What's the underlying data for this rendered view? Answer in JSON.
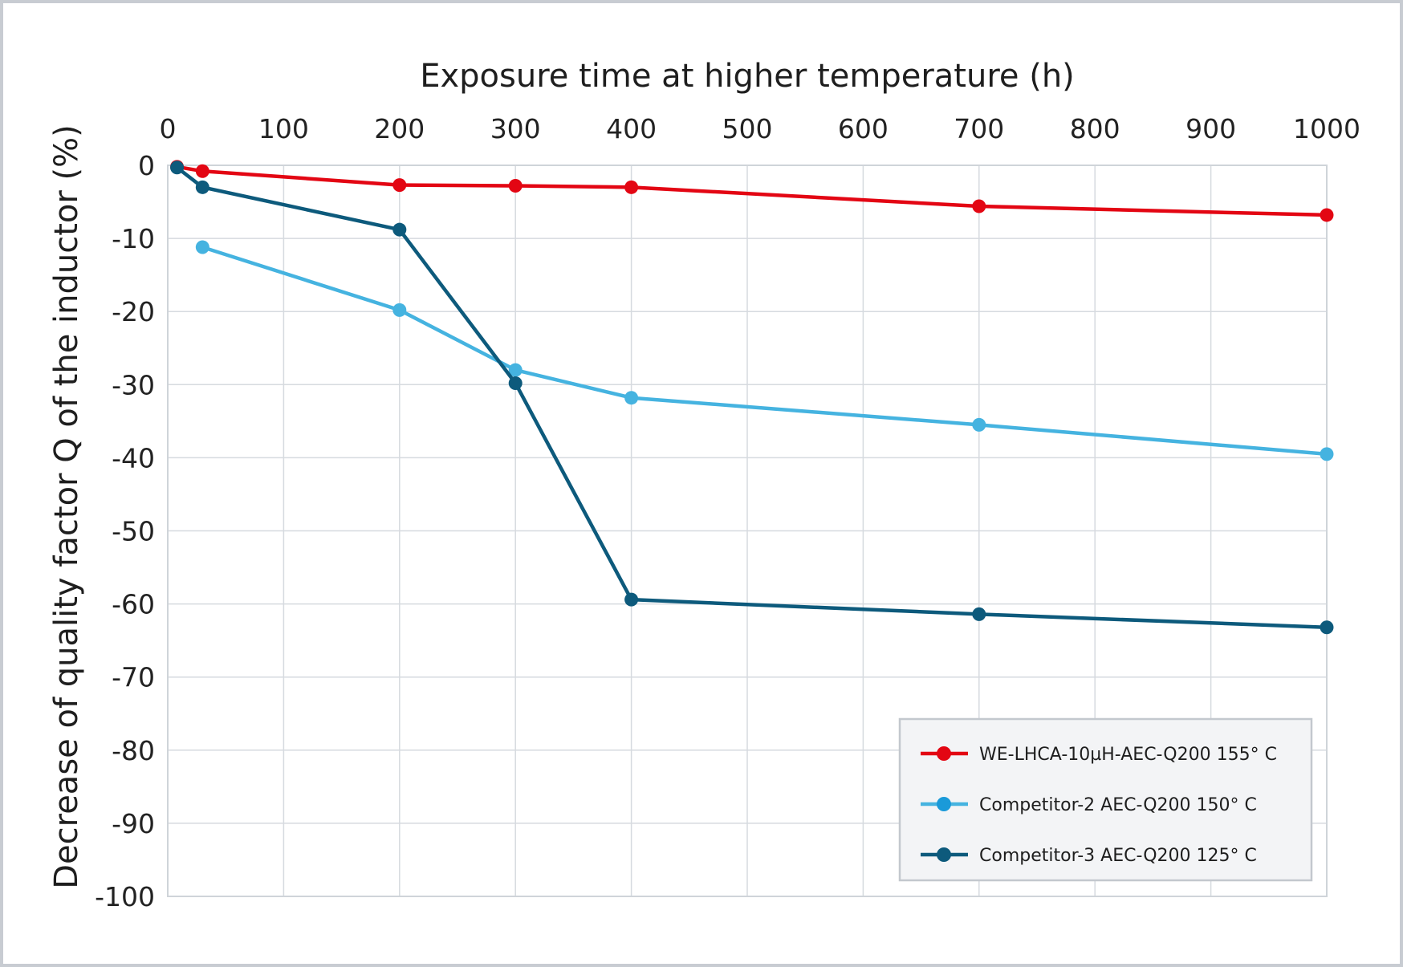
{
  "chart_data": {
    "type": "line",
    "xlabel": "Exposure time at higher temperature (h)",
    "ylabel": "Decrease of quality factor Q of the inductor (%)",
    "xlim": [
      0,
      1000
    ],
    "ylim": [
      -100,
      0
    ],
    "xticks": [
      "0",
      "100",
      "200",
      "300",
      "400",
      "500",
      "600",
      "700",
      "800",
      "900",
      "1000"
    ],
    "yticks": [
      "0",
      "-10",
      "-20",
      "-30",
      "-40",
      "-50",
      "-60",
      "-70",
      "-80",
      "-90",
      "-100"
    ],
    "x_axis_position": "top",
    "grid": true,
    "legend_position": "bottom-right",
    "series": [
      {
        "name": "WE-LHCA-10µH-AEC-Q200 155° C",
        "color": "#e30613",
        "points": [
          [
            8,
            -0.2
          ],
          [
            30,
            -0.8
          ],
          [
            200,
            -2.7
          ],
          [
            300,
            -2.8
          ],
          [
            400,
            -3.0
          ],
          [
            700,
            -5.6
          ],
          [
            1000,
            -6.8
          ]
        ]
      },
      {
        "name": "Competitor-2 AEC-Q200 150° C",
        "color": "#45b3e0",
        "points": [
          [
            30,
            -11.2
          ],
          [
            200,
            -19.8
          ],
          [
            300,
            -28.0
          ],
          [
            400,
            -31.8
          ],
          [
            700,
            -35.5
          ],
          [
            1000,
            -39.5
          ]
        ]
      },
      {
        "name": "Competitor-3 AEC-Q200 125° C",
        "color": "#0d5a7c",
        "points": [
          [
            8,
            -0.3
          ],
          [
            30,
            -3.0
          ],
          [
            200,
            -8.8
          ],
          [
            300,
            -29.8
          ],
          [
            400,
            -59.4
          ],
          [
            700,
            -61.4
          ],
          [
            1000,
            -63.2
          ]
        ]
      }
    ],
    "legend_marker_colors": [
      "#e30613",
      "#1a9ad9",
      "#0d5a7c"
    ]
  }
}
